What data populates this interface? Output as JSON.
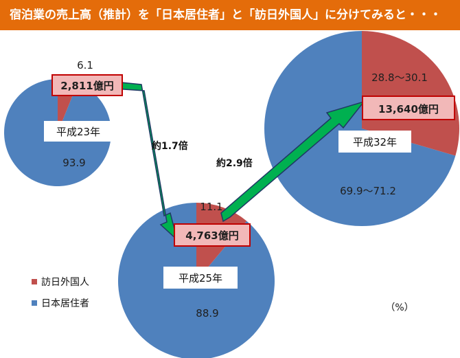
{
  "title": "宿泊業の売上高（推計）を「日本居住者」と「訪日外国人」に分けてみると・・・",
  "colors": {
    "header": "#e46c0a",
    "foreign": "#c0504d",
    "resident": "#4f81bd",
    "arrow": "#00b050",
    "arrow_outline": "#1f3864",
    "box_fill": "#f2b8b8",
    "box_border": "#c00000"
  },
  "chart_data": {
    "type": "pie",
    "unit": "（%）",
    "legend": {
      "placement": "bottom-left",
      "entries": [
        "訪日外国人",
        "日本居住者"
      ]
    },
    "pies": [
      {
        "year": "平成23年",
        "total": "2,811億円",
        "foreign_share": 6.1,
        "resident_share": 93.9,
        "foreign_label": "6.1",
        "resident_label": "93.9"
      },
      {
        "year": "平成25年",
        "total": "4,763億円",
        "foreign_share": 11.1,
        "resident_share": 88.9,
        "foreign_label": "11.1",
        "resident_label": "88.9"
      },
      {
        "year": "平成32年",
        "total": "13,640億円",
        "foreign_share": 29.5,
        "resident_share": 70.5,
        "foreign_label": "28.8〜30.1",
        "resident_label": "69.9〜71.2"
      }
    ],
    "growth": [
      "約1.7倍",
      "約2.9倍"
    ]
  }
}
